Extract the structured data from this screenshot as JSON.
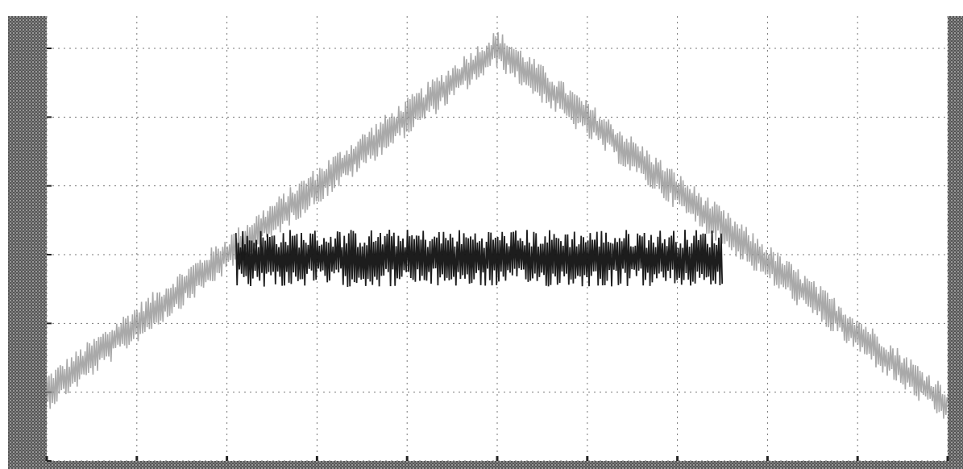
{
  "chart_data": {
    "type": "line",
    "title": "",
    "xlabel": "",
    "ylabel": "",
    "xlim": [
      0,
      10
    ],
    "ylim": [
      0,
      6
    ],
    "grid": true,
    "legend": "none",
    "x_ticks": [
      0,
      1,
      2,
      3,
      4,
      5,
      6,
      7,
      8,
      9,
      10
    ],
    "y_ticks": [
      0,
      1,
      2,
      3,
      4,
      5,
      6
    ],
    "series": [
      {
        "style": "noisy-band",
        "color": "#8c8c8c",
        "noise_amplitude": 0.28,
        "x": [
          0,
          5,
          10
        ],
        "y": [
          1.0,
          6.0,
          0.8
        ]
      },
      {
        "style": "noisy-band",
        "color": "#111111",
        "noise_amplitude": 0.42,
        "x": [
          2.1,
          7.5
        ],
        "y": [
          2.95,
          2.95
        ]
      }
    ]
  }
}
